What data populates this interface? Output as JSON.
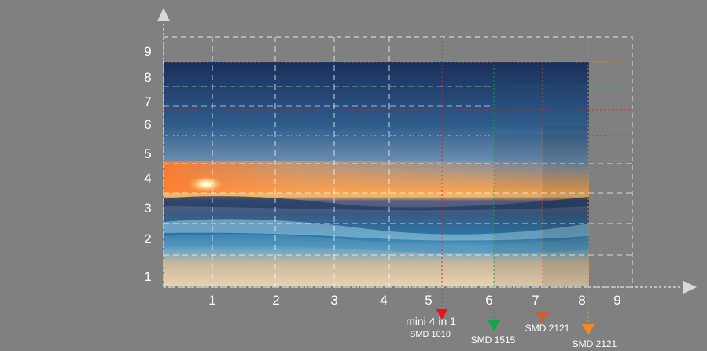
{
  "colors": {
    "background": "#808080",
    "grid_white": "#ffffff",
    "red": "#e8141c",
    "green": "#17a34a",
    "brown": "#c2613a",
    "orange": "#f08a24",
    "axis_arrow": "#d9d9d9"
  },
  "axes": {
    "x_ticks": [
      "1",
      "2",
      "3",
      "4",
      "5",
      "6",
      "7",
      "8",
      "9"
    ],
    "y_ticks": [
      "1",
      "2",
      "3",
      "4",
      "5",
      "6",
      "7",
      "8",
      "9"
    ]
  },
  "markers": [
    {
      "id": "mini-4in1",
      "color": "red",
      "line1": "mini 4 in 1",
      "line2": "SMD 1010"
    },
    {
      "id": "smd1515",
      "color": "green",
      "line1": "SMD 1515",
      "line2": ""
    },
    {
      "id": "smd2121-a",
      "color": "brown",
      "line1": "SMD 2121",
      "line2": ""
    },
    {
      "id": "smd2121-b",
      "color": "orange",
      "line1": "SMD 2121",
      "line2": ""
    }
  ]
}
